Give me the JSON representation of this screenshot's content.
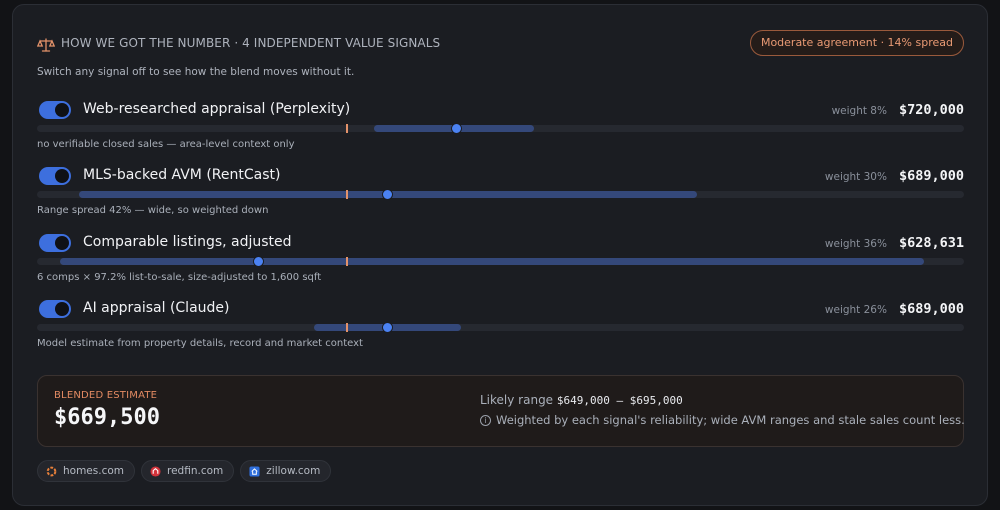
{
  "header": {
    "title": "HOW WE GOT THE NUMBER · 4 INDEPENDENT VALUE SIGNALS",
    "agreement": "Moderate agreement · 14% spread",
    "subtitle": "Switch any signal off to see how the blend moves without it.",
    "icon": "scale-icon"
  },
  "colors": {
    "accent": "#3d6fde",
    "range": "#34487a",
    "marker": "#e3926a",
    "agreement": "#e99a74"
  },
  "blend_marker_value_pct": 0.333,
  "signals": [
    {
      "label": "Web-researched appraisal (Perplexity)",
      "weight": "weight 8%",
      "value": "$720,000",
      "note": "no verifiable closed sales — area-level context only",
      "enabled": true,
      "range_start_pct": 0.363,
      "range_end_pct": 0.536,
      "point_pct": 0.452
    },
    {
      "label": "MLS-backed AVM (RentCast)",
      "weight": "weight 30%",
      "value": "$689,000",
      "note": "Range spread 42% — wide, so weighted down",
      "enabled": true,
      "range_start_pct": 0.045,
      "range_end_pct": 0.712,
      "point_pct": 0.378
    },
    {
      "label": "Comparable listings, adjusted",
      "weight": "weight 36%",
      "value": "$628,631",
      "note": "6 comps × 97.2% list-to-sale, size-adjusted to 1,600 sqft",
      "enabled": true,
      "range_start_pct": 0.025,
      "range_end_pct": 0.957,
      "point_pct": 0.238
    },
    {
      "label": "AI appraisal (Claude)",
      "weight": "weight 26%",
      "value": "$689,000",
      "note": "Model estimate from property details, record and market context",
      "enabled": true,
      "range_start_pct": 0.299,
      "range_end_pct": 0.457,
      "point_pct": 0.378
    }
  ],
  "blend": {
    "label": "BLENDED ESTIMATE",
    "value": "$669,500",
    "likely_prefix": "Likely range",
    "likely_range": "$649,000 – $695,000",
    "explanation": "Weighted by each signal's reliability; wide AVM ranges and stale sales count less."
  },
  "sources": [
    {
      "label": "homes.com",
      "icon": "homes-icon",
      "color": "#e8803a"
    },
    {
      "label": "redfin.com",
      "icon": "redfin-icon",
      "color": "#d2333b"
    },
    {
      "label": "zillow.com",
      "icon": "zillow-icon",
      "color": "#2f6fdc"
    }
  ]
}
